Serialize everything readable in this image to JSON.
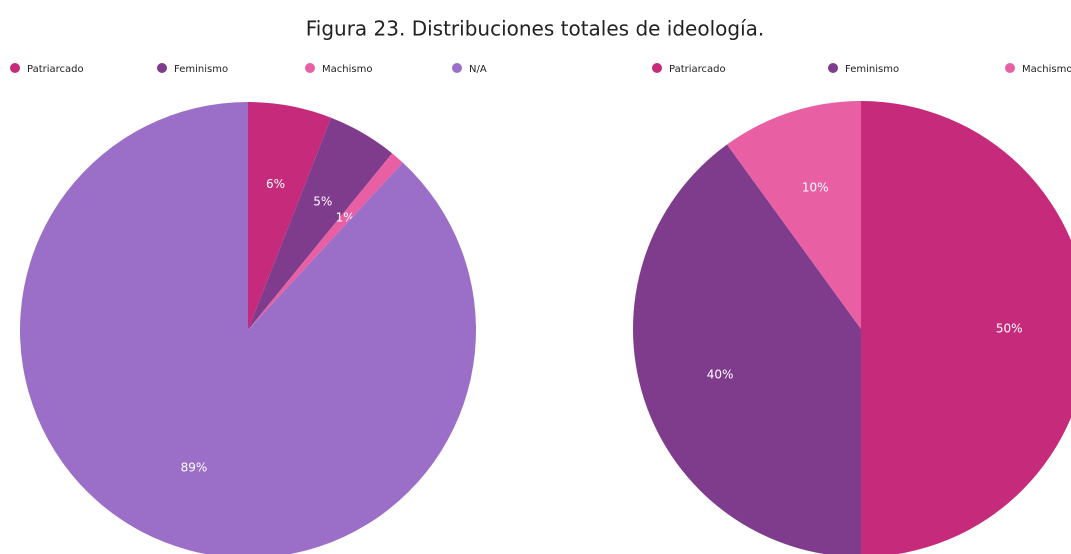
{
  "title": "Figura 23. Distribuciones totales de ideología.",
  "chart_data": [
    {
      "type": "pie",
      "categories": [
        "Patriarcado",
        "Feminismo",
        "Machismo",
        "N/A"
      ],
      "values": [
        6,
        5,
        1,
        89
      ],
      "value_labels": [
        "6%",
        "5%",
        "1%",
        "89%"
      ],
      "colors": [
        "#c62a7a",
        "#7f3b8c",
        "#e95fa3",
        "#9b6fc7"
      ],
      "legend": "top"
    },
    {
      "type": "pie",
      "categories": [
        "Patriarcado",
        "Feminismo",
        "Machismo"
      ],
      "values": [
        50,
        40,
        10
      ],
      "value_labels": [
        "50%",
        "40%",
        "10%"
      ],
      "colors": [
        "#c62a7a",
        "#7f3b8c",
        "#e95fa3"
      ],
      "legend": "top"
    }
  ]
}
